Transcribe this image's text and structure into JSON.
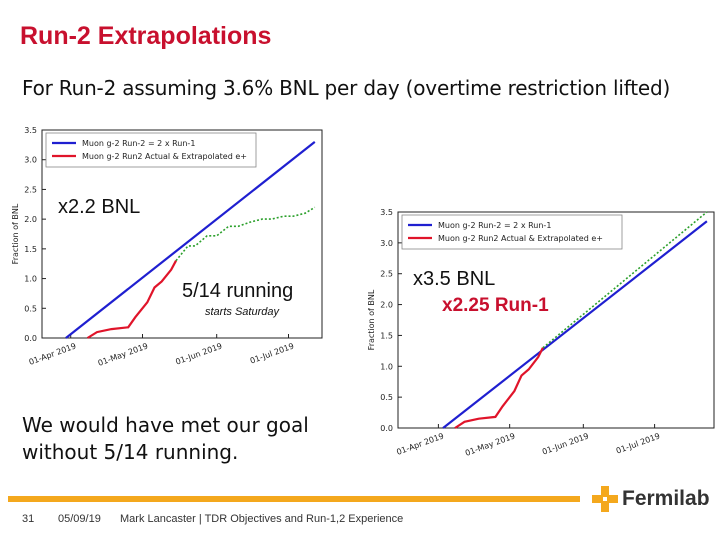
{
  "slide": {
    "title": "Run-2 Extrapolations",
    "subtitle": "For Run-2 assuming 3.6% BNL per day (overtime restriction lifted)",
    "goal_line1": "We would have met our goal",
    "goal_line2": "without 5/14 running.",
    "annotations": {
      "left_multiplier": "x2.2 BNL",
      "left_running": "5/14 running",
      "left_running_note": "starts Saturday",
      "right_multiplier": "x3.5 BNL",
      "right_run1": "x2.25 Run-1"
    },
    "footer": {
      "page_number": "31",
      "date": "05/09/19",
      "text": "Mark Lancaster | TDR Objectives and Run-1,2 Experience",
      "logo_text": "Fermilab"
    },
    "colors": {
      "title": "#c8102e",
      "footer_bar": "#f4a81d",
      "blue_series": "#1f1fd0",
      "red_series": "#e0142a",
      "green_series": "#2ca02c"
    }
  },
  "chart_data": [
    {
      "type": "line",
      "ylabel": "Fraction of BNL",
      "ylim": [
        0,
        3.5
      ],
      "yticks": [
        "0.0",
        "0.5",
        "1.0",
        "1.5",
        "2.0",
        "2.5",
        "3.0",
        "3.5"
      ],
      "xlim": [
        "2019-03-20",
        "2019-07-15"
      ],
      "xticks": [
        {
          "date": "2019-04-01",
          "label": "01-Apr 2019"
        },
        {
          "date": "2019-05-01",
          "label": "01-May 2019"
        },
        {
          "date": "2019-06-01",
          "label": "01-Jun 2019"
        },
        {
          "date": "2019-07-01",
          "label": "01-Jul 2019"
        }
      ],
      "legend": "top-left",
      "series": [
        {
          "name": "Muon g-2 Run-2 = 2 x Run-1",
          "color": "blue",
          "points": [
            [
              "2019-03-30",
              0.0
            ],
            [
              "2019-07-12",
              3.3
            ]
          ]
        },
        {
          "name": "Muon g-2 Run2 Actual & Extrapolated e+",
          "color": "red",
          "points": [
            [
              "2019-04-08",
              0.0
            ],
            [
              "2019-04-12",
              0.1
            ],
            [
              "2019-04-18",
              0.15
            ],
            [
              "2019-04-25",
              0.18
            ],
            [
              "2019-04-28",
              0.35
            ],
            [
              "2019-05-03",
              0.6
            ],
            [
              "2019-05-06",
              0.85
            ],
            [
              "2019-05-09",
              0.95
            ],
            [
              "2019-05-13",
              1.15
            ],
            [
              "2019-05-15",
              1.3
            ]
          ]
        },
        {
          "name": "",
          "color": "green",
          "points": [
            [
              "2019-05-15",
              1.3
            ],
            [
              "2019-05-20",
              1.55
            ],
            [
              "2019-05-23",
              1.55
            ],
            [
              "2019-05-28",
              1.72
            ],
            [
              "2019-06-01",
              1.72
            ],
            [
              "2019-06-06",
              1.88
            ],
            [
              "2019-06-10",
              1.88
            ],
            [
              "2019-06-15",
              1.95
            ],
            [
              "2019-06-20",
              2.0
            ],
            [
              "2019-06-24",
              2.0
            ],
            [
              "2019-06-29",
              2.05
            ],
            [
              "2019-07-03",
              2.05
            ],
            [
              "2019-07-08",
              2.1
            ],
            [
              "2019-07-12",
              2.2
            ]
          ]
        }
      ]
    },
    {
      "type": "line",
      "ylabel": "Fraction of BNL",
      "ylim": [
        0,
        3.5
      ],
      "yticks": [
        "0.0",
        "0.5",
        "1.0",
        "1.5",
        "2.0",
        "2.5",
        "3.0",
        "3.5"
      ],
      "xlim": [
        "2019-03-15",
        "2019-07-26"
      ],
      "xticks": [
        {
          "date": "2019-04-01",
          "label": "01-Apr 2019"
        },
        {
          "date": "2019-05-01",
          "label": "01-May 2019"
        },
        {
          "date": "2019-06-01",
          "label": "01-Jun 2019"
        },
        {
          "date": "2019-07-01",
          "label": "01-Jul 2019"
        }
      ],
      "legend": "top-left",
      "series": [
        {
          "name": "Muon g-2 Run-2 = 2 x Run-1",
          "color": "blue",
          "points": [
            [
              "2019-04-03",
              0.0
            ],
            [
              "2019-07-23",
              3.35
            ]
          ]
        },
        {
          "name": "Muon g-2 Run2 Actual & Extrapolated e+",
          "color": "red",
          "points": [
            [
              "2019-04-08",
              0.0
            ],
            [
              "2019-04-12",
              0.1
            ],
            [
              "2019-04-18",
              0.15
            ],
            [
              "2019-04-25",
              0.18
            ],
            [
              "2019-04-28",
              0.35
            ],
            [
              "2019-05-03",
              0.6
            ],
            [
              "2019-05-06",
              0.85
            ],
            [
              "2019-05-09",
              0.95
            ],
            [
              "2019-05-13",
              1.15
            ],
            [
              "2019-05-15",
              1.3
            ]
          ]
        },
        {
          "name": "",
          "color": "green",
          "points": [
            [
              "2019-05-15",
              1.3
            ],
            [
              "2019-07-23",
              3.5
            ]
          ]
        }
      ]
    }
  ]
}
